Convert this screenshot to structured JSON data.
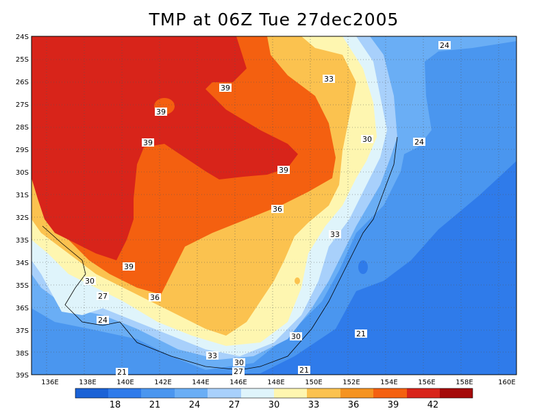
{
  "title": "TMP at 06Z Tue 27dec2005",
  "lat_ticks": [
    "24S",
    "25S",
    "26S",
    "27S",
    "28S",
    "29S",
    "30S",
    "31S",
    "32S",
    "33S",
    "34S",
    "35S",
    "36S",
    "37S",
    "38S",
    "39S"
  ],
  "lon_ticks": [
    "136E",
    "138E",
    "140E",
    "142E",
    "144E",
    "146E",
    "148E",
    "150E",
    "152E",
    "154E",
    "156E",
    "158E",
    "160E"
  ],
  "contour_labels": [
    "24",
    "24",
    "39",
    "39",
    "39",
    "33",
    "39",
    "36",
    "30",
    "33",
    "39",
    "30",
    "27",
    "36",
    "24",
    "21",
    "30",
    "33",
    "30",
    "27",
    "21",
    "21"
  ],
  "colorbar": {
    "levels": [
      "18",
      "21",
      "24",
      "27",
      "30",
      "33",
      "36",
      "39",
      "42"
    ],
    "colors": [
      "#1b62d6",
      "#2f7bea",
      "#4a96ef",
      "#6aaef5",
      "#a8d0fb",
      "#dff4fb",
      "#fef6b0",
      "#fbc24f",
      "#f59320",
      "#f46010",
      "#d8241a",
      "#a50a0a"
    ]
  }
}
